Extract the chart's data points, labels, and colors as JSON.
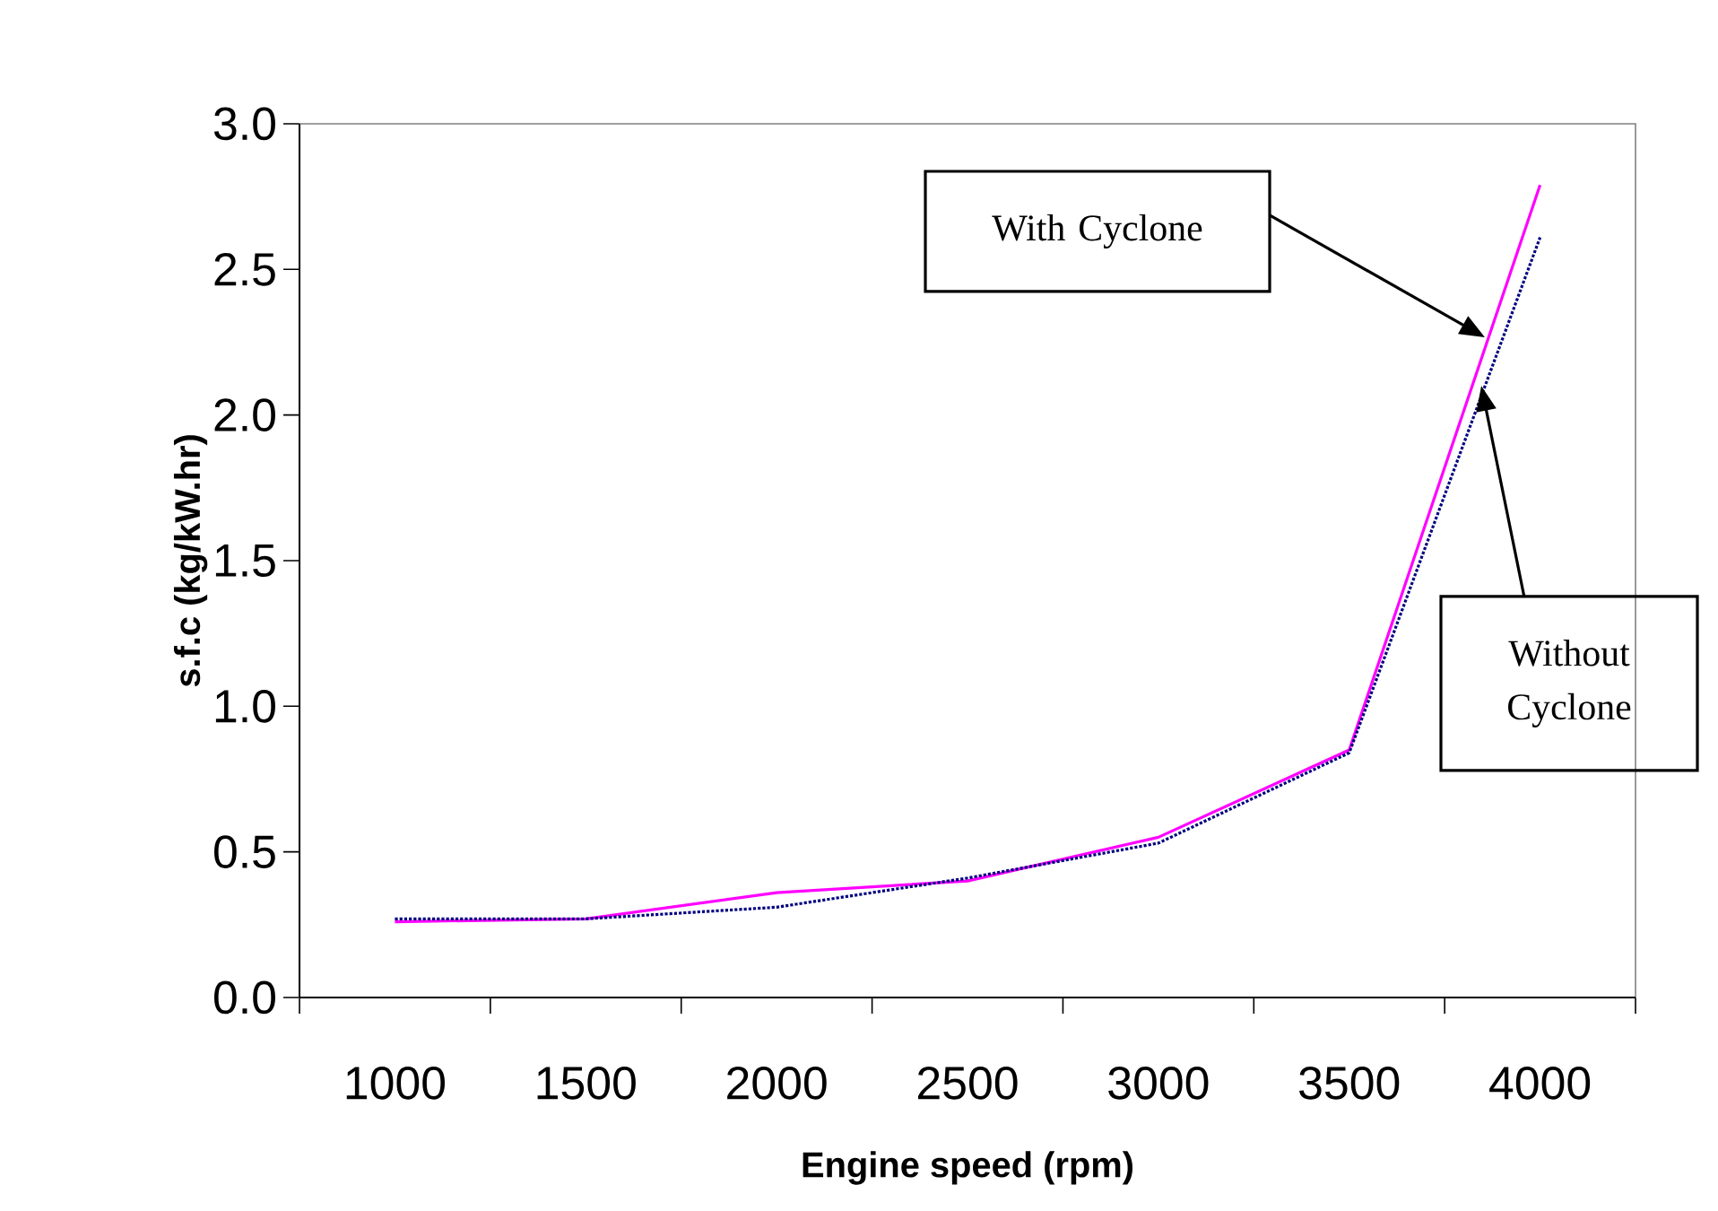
{
  "chart_data": {
    "type": "line",
    "xlabel": "Engine speed (rpm)",
    "ylabel": "s.f.c (kg/kW.hr)",
    "categories": [
      "1000",
      "1500",
      "2000",
      "2500",
      "3000",
      "3500",
      "4000"
    ],
    "series": [
      {
        "color": "#ff00ff",
        "line_style": "solid",
        "values": [
          0.26,
          0.27,
          0.36,
          0.4,
          0.55,
          0.85,
          2.79
        ]
      },
      {
        "color": "#000080",
        "line_style": "dotted",
        "values": [
          0.27,
          0.27,
          0.31,
          0.41,
          0.53,
          0.84,
          2.61
        ]
      }
    ],
    "ylim": [
      0,
      3
    ],
    "yticks": [
      {
        "value": 0,
        "label": "0.0"
      },
      0.5,
      {
        "value": 1,
        "label": "1.0"
      },
      1.5,
      {
        "value": 2,
        "label": "2.0"
      },
      2.5,
      {
        "value": 3,
        "label": "3.0"
      }
    ],
    "annotations": [
      "With Cyclone",
      "Without Cyclone"
    ]
  }
}
